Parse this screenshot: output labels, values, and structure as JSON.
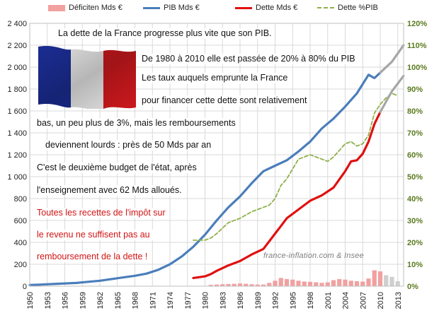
{
  "chart_data": {
    "type": "line",
    "title": "",
    "xlabel": "",
    "ylabel": "",
    "x_range": [
      1950,
      2014
    ],
    "ylim_left": [
      0,
      2400
    ],
    "ylim_right": [
      0,
      120
    ],
    "left_ticks": [
      "0",
      "200",
      "400",
      "600",
      "800",
      "1 000",
      "1 200",
      "1 400",
      "1 600",
      "1 800",
      "2 000",
      "2 200",
      "2 400"
    ],
    "right_ticks": [
      "0%",
      "10%",
      "20%",
      "30%",
      "40%",
      "50%",
      "60%",
      "70%",
      "80%",
      "90%",
      "100%",
      "110%",
      "120%"
    ],
    "x_ticks": [
      "1950",
      "1953",
      "1956",
      "1959",
      "1962",
      "1965",
      "1968",
      "1971",
      "1974",
      "1977",
      "1980",
      "1983",
      "1986",
      "1989",
      "1992",
      "1995",
      "1998",
      "2001",
      "2004",
      "2007",
      "2010",
      "2013"
    ],
    "grid": true,
    "legend_position": "top",
    "legend": {
      "deficit": "Déficiten Mds €",
      "pib": "PIB Mds €",
      "dette": "Dette  Mds €",
      "dette_pct": "Dette %PIB"
    },
    "colors": {
      "pib": "#4a7ebb",
      "dette": "#e01010",
      "dette_pct": "#8fb04a",
      "deficit": "#f2a0a0",
      "deficit_proj": "#cfcfcf",
      "projection": "#a6a6a6",
      "right_axis": "#5a7a1e"
    },
    "series": [
      {
        "name": "PIB Mds €",
        "axis": "left",
        "x": [
          1950,
          1952,
          1954,
          1956,
          1958,
          1960,
          1962,
          1964,
          1966,
          1968,
          1970,
          1972,
          1974,
          1976,
          1978,
          1980,
          1982,
          1984,
          1986,
          1988,
          1990,
          1992,
          1994,
          1996,
          1998,
          2000,
          2002,
          2004,
          2006,
          2008,
          2009,
          2010
        ],
        "values": [
          10,
          15,
          20,
          25,
          30,
          40,
          50,
          65,
          80,
          95,
          115,
          150,
          200,
          270,
          360,
          470,
          600,
          720,
          820,
          940,
          1050,
          1100,
          1150,
          1230,
          1320,
          1440,
          1530,
          1640,
          1760,
          1930,
          1900,
          1950
        ]
      },
      {
        "name": "Dette  Mds €",
        "axis": "left",
        "x": [
          1978,
          1980,
          1981,
          1982,
          1984,
          1986,
          1988,
          1990,
          1992,
          1993,
          1994,
          1996,
          1998,
          2000,
          2002,
          2004,
          2005,
          2006,
          2007,
          2008,
          2009,
          2010
        ],
        "values": [
          75,
          90,
          110,
          140,
          190,
          230,
          290,
          340,
          480,
          550,
          620,
          700,
          780,
          830,
          900,
          1050,
          1140,
          1150,
          1210,
          1320,
          1480,
          1590
        ]
      },
      {
        "name": "Dette %PIB",
        "axis": "right",
        "x": [
          1978,
          1980,
          1981,
          1982,
          1984,
          1986,
          1988,
          1990,
          1991,
          1992,
          1993,
          1994,
          1996,
          1998,
          2000,
          2001,
          2002,
          2003,
          2004,
          2005,
          2006,
          2007,
          2008,
          2009,
          2010,
          2011,
          2012,
          2013
        ],
        "values": [
          21,
          21,
          22,
          24,
          29,
          31,
          34,
          36,
          37,
          40,
          46,
          49,
          58,
          60,
          58,
          57,
          59,
          62,
          65,
          66,
          64,
          65,
          69,
          79,
          83,
          86,
          88,
          87
        ]
      },
      {
        "name": "Déficiten Mds €",
        "type": "bar",
        "axis": "left",
        "x": [
          1981,
          1982,
          1983,
          1984,
          1985,
          1986,
          1987,
          1988,
          1989,
          1990,
          1991,
          1992,
          1993,
          1994,
          1995,
          1996,
          1997,
          1998,
          1999,
          2000,
          2001,
          2002,
          2003,
          2004,
          2005,
          2006,
          2007,
          2008,
          2009,
          2010
        ],
        "values": [
          12,
          15,
          18,
          20,
          22,
          25,
          22,
          18,
          15,
          15,
          30,
          50,
          75,
          65,
          60,
          50,
          42,
          40,
          35,
          30,
          35,
          55,
          65,
          60,
          50,
          45,
          42,
          70,
          145,
          135
        ]
      },
      {
        "name": "",
        "role": "projection",
        "axis": "left",
        "x": [
          2010,
          2012,
          2014
        ],
        "values": [
          1950,
          2050,
          2200
        ]
      },
      {
        "name": "",
        "role": "projection",
        "axis": "left",
        "x": [
          2010,
          2012,
          2014
        ],
        "values": [
          1590,
          1780,
          1920
        ]
      },
      {
        "name": "",
        "role": "projection",
        "type": "bar",
        "axis": "left",
        "x": [
          2011,
          2012,
          2013
        ],
        "values": [
          100,
          85,
          45
        ]
      }
    ]
  },
  "notes": {
    "line1": "La dette de la France progresse  plus vite que son PIB.",
    "line2": "De  1980  à  2010  elle  est passée de 20% à 80%  du PIB",
    "line3": "Les taux auquels emprunte  la France",
    "line4": "pour  financer cette dette sont relativement",
    "line5": "bas, un peu plus de 3%,  mais les remboursements",
    "line6": "deviennent lourds : près de 50 Mds par an",
    "line7": "C'est le deuxième  budget de l'état, après",
    "line8": "l'enseignement  avec 62 Mds alloués.",
    "red1": "Toutes les recettes de l'impôt  sur",
    "red2": "le revenu ne suffisent pas au",
    "red3": "remboursement   de la dette  !"
  },
  "source": "france-inflation.com & Insee"
}
